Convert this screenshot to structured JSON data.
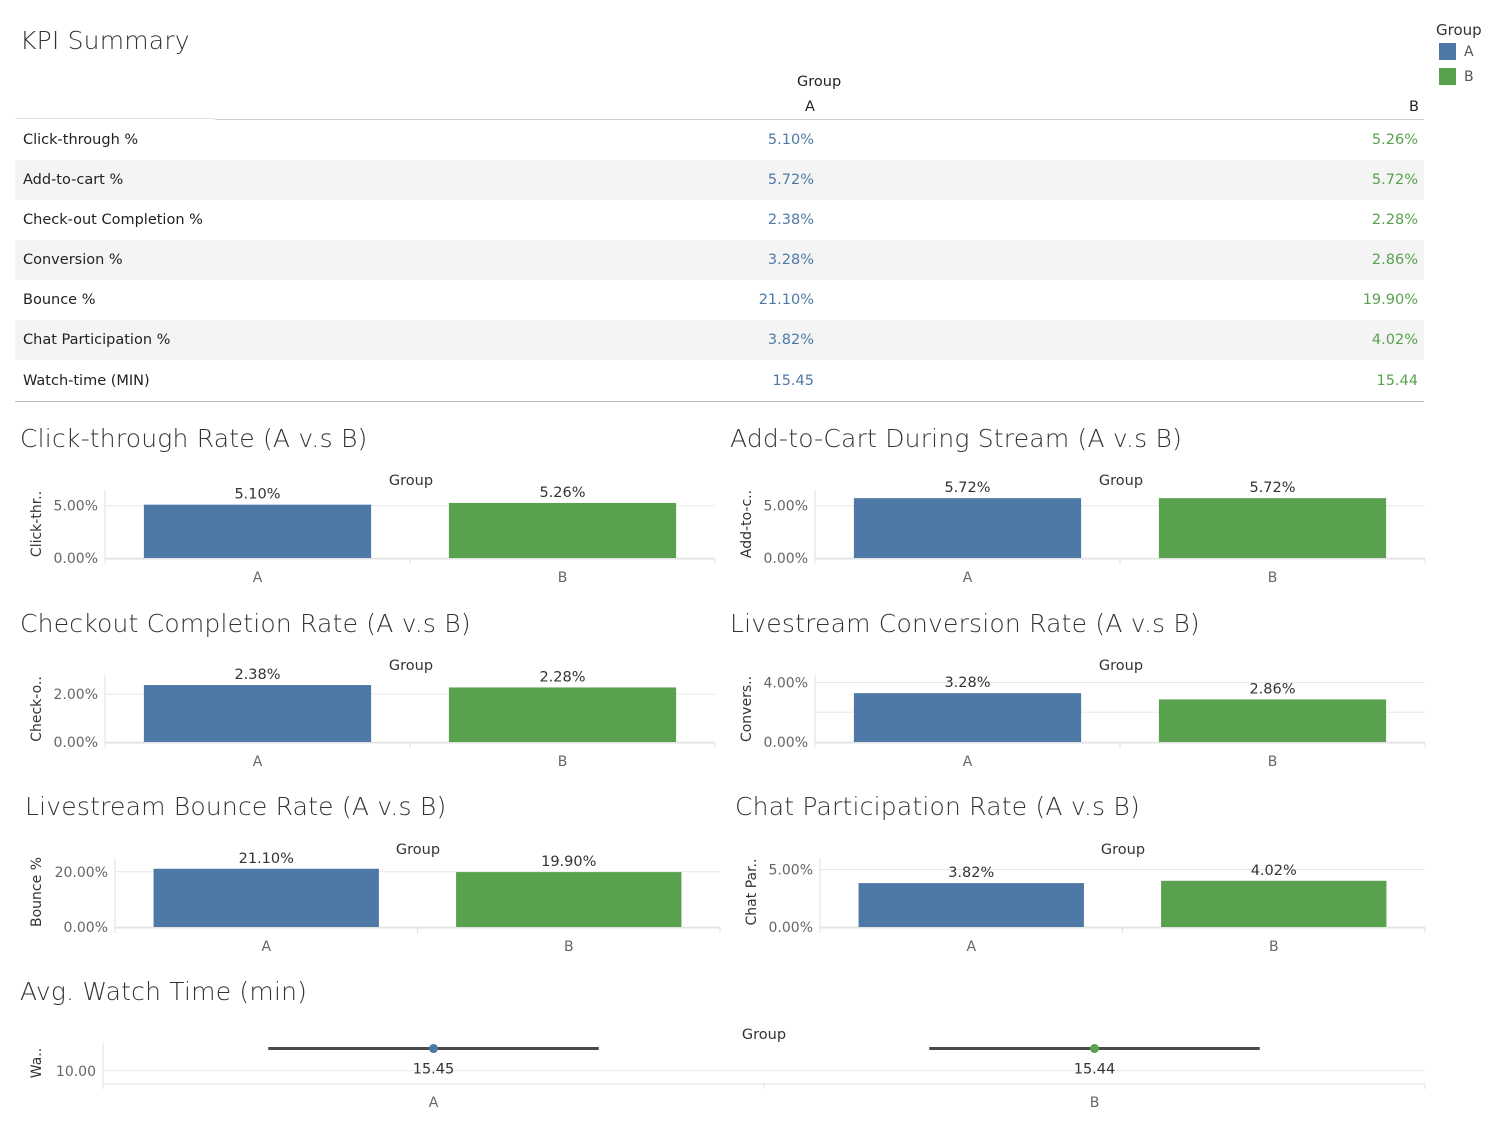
{
  "colors": {
    "A": "#4e79a7",
    "B": "#59a14f",
    "text": "#333333",
    "axis": "#666666",
    "grid": "#e8e8e8",
    "alt_row": "#f4f4f4"
  },
  "legend": {
    "title": "Group",
    "items": [
      {
        "label": "A",
        "color": "#4e79a7"
      },
      {
        "label": "B",
        "color": "#59a14f"
      }
    ]
  },
  "kpi_summary": {
    "title": "KPI Summary",
    "group_header": "Group",
    "col_a": "A",
    "col_b": "B",
    "rows": [
      {
        "label": "Click-through %",
        "a": "5.10%",
        "b": "5.26%"
      },
      {
        "label": "Add-to-cart %",
        "a": "5.72%",
        "b": "5.72%"
      },
      {
        "label": "Check-out Completion %",
        "a": "2.38%",
        "b": "2.28%"
      },
      {
        "label": "Conversion %",
        "a": "3.28%",
        "b": "2.86%"
      },
      {
        "label": "Bounce %",
        "a": "21.10%",
        "b": "19.90%"
      },
      {
        "label": "Chat Participation %",
        "a": "3.82%",
        "b": "4.02%"
      },
      {
        "label": "Watch-time (MIN)",
        "a": "15.45",
        "b": "15.44"
      }
    ]
  },
  "chart_data": [
    {
      "id": "ctr",
      "type": "bar",
      "title": "Click-through Rate (A v.s B)",
      "group_label": "Group",
      "ylabel": "Click-thr..",
      "categories": [
        "A",
        "B"
      ],
      "values": [
        5.1,
        5.26
      ],
      "data_labels": [
        "5.10%",
        "5.26%"
      ],
      "ylim": [
        0,
        6.5
      ],
      "yticks": [
        0,
        5
      ],
      "ytick_labels": [
        "0.00%",
        "5.00%"
      ]
    },
    {
      "id": "atc",
      "type": "bar",
      "title": "Add-to-Cart During Stream (A v.s B)",
      "group_label": "Group",
      "ylabel": "Add-to-c..",
      "categories": [
        "A",
        "B"
      ],
      "values": [
        5.72,
        5.72
      ],
      "data_labels": [
        "5.72%",
        "5.72%"
      ],
      "ylim": [
        0,
        6.5
      ],
      "yticks": [
        0,
        5
      ],
      "ytick_labels": [
        "0.00%",
        "5.00%"
      ]
    },
    {
      "id": "checkout",
      "type": "bar",
      "title": "Checkout Completion Rate (A v.s B)",
      "group_label": "Group",
      "ylabel": "Check-o..",
      "categories": [
        "A",
        "B"
      ],
      "values": [
        2.38,
        2.28
      ],
      "data_labels": [
        "2.38%",
        "2.28%"
      ],
      "ylim": [
        0,
        2.8
      ],
      "yticks": [
        0,
        2
      ],
      "ytick_labels": [
        "0.00%",
        "2.00%"
      ]
    },
    {
      "id": "conversion",
      "type": "bar",
      "title": "Livestream Conversion Rate  (A v.s B)",
      "group_label": "Group",
      "ylabel": "Convers..",
      "categories": [
        "A",
        "B"
      ],
      "values": [
        3.28,
        2.86
      ],
      "data_labels": [
        "3.28%",
        "2.86%"
      ],
      "ylim": [
        0,
        4.5
      ],
      "yticks": [
        0,
        2,
        4
      ],
      "ytick_labels": [
        "0.00%",
        "",
        "4.00%"
      ]
    },
    {
      "id": "bounce",
      "type": "bar",
      "title": "Livestream Bounce Rate (A v.s B)",
      "group_label": "Group",
      "ylabel": "Bounce %",
      "categories": [
        "A",
        "B"
      ],
      "values": [
        21.1,
        19.9
      ],
      "data_labels": [
        "21.10%",
        "19.90%"
      ],
      "ylim": [
        0,
        25
      ],
      "yticks": [
        0,
        20
      ],
      "ytick_labels": [
        "0.00%",
        "20.00%"
      ]
    },
    {
      "id": "chat",
      "type": "bar",
      "title": "Chat Participation Rate (A v.s B)",
      "group_label": "Group",
      "ylabel": "Chat Par..",
      "categories": [
        "A",
        "B"
      ],
      "values": [
        3.82,
        4.02
      ],
      "data_labels": [
        "3.82%",
        "4.02%"
      ],
      "ylim": [
        0,
        6
      ],
      "yticks": [
        0,
        5
      ],
      "ytick_labels": [
        "0.00%",
        "5.00%"
      ]
    },
    {
      "id": "watch",
      "type": "scatter",
      "title": "Avg. Watch Time (min)",
      "group_label": "Group",
      "ylabel": "Wa..",
      "categories": [
        "A",
        "B"
      ],
      "values": [
        15.45,
        15.44
      ],
      "data_labels": [
        "15.45",
        "15.44"
      ],
      "ylim": [
        7,
        16.8
      ],
      "yticks": [
        10
      ],
      "ytick_labels": [
        "10.00"
      ]
    }
  ]
}
